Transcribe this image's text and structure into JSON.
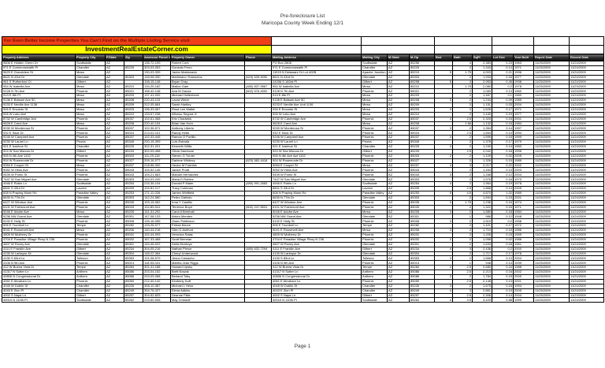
{
  "page": {
    "title_line1": "Pre-foreclosure List",
    "title_line2": "Maricopa County Week Ending 12/1",
    "footer": "Page 1"
  },
  "banner": {
    "line1": "For Even Better Income Properties You Can't Find on the Multiple Listing Service visit",
    "line2": "InvestmentRealEstateCorner.com",
    "bg1": "#f04019",
    "fg1": "#7d1000",
    "bg2": "#ffff00",
    "fg2": "#000000"
  },
  "table": {
    "columns": [
      "Property Address",
      "Property City",
      "P.State",
      "Zip",
      "Assessor Parcel #",
      "Property Owner",
      "Phone",
      "Mailing Address",
      "Mailing City",
      "M.State",
      "M.Zip",
      "Bed",
      "Bath",
      "SqFt",
      "Lot Size",
      "Year Built",
      "Report Date",
      "Record Date"
    ],
    "rows": [
      [
        "9606 E Hidden Green Dr",
        "Scottsdale",
        "AZ",
        "",
        "136-72-109",
        "Robert Cork",
        "",
        "PO Box 2808",
        "Scottsdale",
        "AZ",
        "85256",
        "",
        "4",
        "2,383",
        "0.23",
        "1963",
        "11/25/2009",
        "11/24/2009"
      ],
      [
        "971 E Commonwealth Pl",
        "Chandler",
        "AZ",
        "85225",
        "303-03-053",
        "Gonzalo Ferro",
        "",
        "971 E Commonwealth Pl",
        "Chandler",
        "AZ",
        "85225",
        "",
        "2",
        "1,343",
        "0.14",
        "1971",
        "11/25/2009",
        "11/24/2009"
      ],
      [
        "9629 E Grandview St",
        "Mesa",
        "AZ",
        "",
        "130-03-339",
        "Jadon Maldonado",
        "",
        "11015 N Delaware Dr Lot 402B",
        "Apache Junction",
        "AZ",
        "85219",
        "5",
        "1.75",
        "4,003",
        "0.21",
        "1996",
        "11/25/2009",
        "11/24/2009"
      ],
      [
        "8621 N 43rd Dr",
        "Glendale",
        "AZ",
        "85303",
        "148-08-330",
        "Martiniano Ybanuelos",
        "(623) 535-9090",
        "8621 N 43rd Dr",
        "Glendale",
        "AZ",
        "85303",
        "",
        "2",
        "1,933",
        "0.16",
        "1977",
        "11/25/2009",
        "11/24/2009"
      ],
      [
        "961 S Rutherford Ct",
        "Gilbert",
        "AZ",
        "",
        "108-15-148",
        "Bryan Gray",
        "",
        "24206 S 183rd Pl",
        "Gilbert",
        "AZ",
        "85298",
        "5",
        "3",
        "2,953",
        "0.45",
        "1998",
        "11/25/2009",
        "11/24/2009"
      ],
      [
        "954 W Isabella Ave",
        "Mesa",
        "AZ",
        "85210",
        "134-25-182",
        "Mallon Gale",
        "(480) 837-9567",
        "954 W Isabella Ave",
        "Mesa",
        "AZ",
        "85210",
        "",
        "1.75",
        "2,080",
        "0.2",
        "1978",
        "11/25/2009",
        "11/23/2009"
      ],
      [
        "9128 N 7th Ave",
        "Phoenix",
        "AZ",
        "85021",
        "158-42-148",
        "Ana M Garcia",
        "(602) 576-4092",
        "9128 N 7th Ave",
        "Phoenix",
        "AZ",
        "85021",
        "",
        "2",
        "1,083",
        "0.13",
        "1960",
        "11/25/2009",
        "11/24/2009"
      ],
      [
        "913 E 8th Pl",
        "Mesa",
        "AZ",
        "85203",
        "137-41-032",
        "Michael Hollenbeck",
        "",
        "913 E 8th Pl",
        "Mesa",
        "AZ",
        "85203",
        "",
        "2",
        "1,467",
        "0.1",
        "1960",
        "11/25/2009",
        "11/24/2009"
      ],
      [
        "9136 E Balsam Ave 5C",
        "Mesa",
        "AZ",
        "85208",
        "220-43-115",
        "Laura Welch",
        "",
        "9136 E Balsam Ave 5C",
        "Mesa",
        "AZ",
        "85208",
        "3",
        "2",
        "1,244",
        "0.09",
        "1985",
        "11/25/2009",
        "11/24/2009"
      ],
      [
        "9233 E Neville Ave 1136",
        "Mesa",
        "AZ",
        "85209",
        "312-05-664",
        "Sarah Hartley",
        "",
        "9233 E Neville Ave Unit 1136",
        "Mesa",
        "AZ",
        "85209",
        "",
        "2",
        "1,151",
        "0.03",
        "2004",
        "11/25/2009",
        "11/24/2009"
      ],
      [
        "926 E Encanto St",
        "Mesa",
        "AZ",
        "85203",
        "136-33-067",
        "Rosa Lee Walter",
        "",
        "926 E Encanto St",
        "Mesa",
        "AZ",
        "85203",
        "3",
        "2",
        "1,626",
        "0.17",
        "1971",
        "11/25/2009",
        "11/24/2009"
      ],
      [
        "926 W Lobo Ave",
        "Mesa",
        "AZ",
        "85210",
        "133-57-238",
        "Alfonso Segura Jr",
        "",
        "926 W Lobo Ave",
        "Mesa",
        "AZ",
        "85210",
        "",
        "2",
        "1,440",
        "0.19",
        "1977",
        "11/25/2009",
        "11/24/2009"
      ],
      [
        "8732 W Cambridge Ave",
        "Phoenix",
        "AZ",
        "85037",
        "102-61-068",
        "Eric Chadwick",
        "",
        "8732 W Cambridge Ave",
        "Phoenix",
        "AZ",
        "85037",
        "4",
        "2.5",
        "2,325",
        "0.15",
        "2001",
        "11/25/2009",
        "11/24/2009"
      ],
      [
        "9628 E Carol Ave",
        "Mesa",
        "AZ",
        "85208",
        "220-40-104",
        "Brian Van Horn",
        "",
        "9628 E Carol Ave",
        "Mesa",
        "AZ",
        "85208",
        "",
        "1.66",
        "1,132",
        "0.16",
        "1984",
        "11/25/2009",
        "11/24/2009"
      ],
      [
        "9030 W Monterosa St",
        "Phoenix",
        "AZ",
        "85037",
        "102-36-571",
        "Anthony Liberto",
        "",
        "9030 W Monterosa St",
        "Phoenix",
        "AZ",
        "85037",
        "3",
        "2",
        "1,354",
        "0.14",
        "1997",
        "11/25/2009",
        "11/24/2009"
      ],
      [
        "932 E Sack Dr",
        "Phoenix",
        "AZ",
        "85024",
        "213-02-101",
        "Randy Hebb",
        "",
        "932 E Sack Dr",
        "Phoenix",
        "AZ",
        "85024",
        "",
        "2.5",
        "1,654",
        "0.14",
        "1994",
        "11/25/2009",
        "11/24/2009"
      ],
      [
        "9246 W Campbell Ave",
        "Phoenix",
        "AZ",
        "85037",
        "102-33-445",
        "Ramon O Portillo",
        "",
        "9246 W Campbell Ave",
        "Phoenix",
        "AZ",
        "85037",
        "4",
        "2",
        "1,599",
        "0.15",
        "1999",
        "11/25/2009",
        "11/24/2009"
      ],
      [
        "9230 W Laurel Ln",
        "Peoria",
        "AZ",
        "85345",
        "200-15-399",
        "Luis Estrada",
        "",
        "9230 W Laurel Ln",
        "Peoria",
        "AZ",
        "85345",
        "",
        "2",
        "1,378",
        "0.17",
        "1979",
        "11/25/2009",
        "11/24/2009"
      ],
      [
        "921 E Ivanhoe St",
        "Chandler",
        "AZ",
        "85225",
        "302-31-201",
        "Kenneth Willis",
        "",
        "921 E Ivanhoe St",
        "Chandler",
        "AZ",
        "85225",
        "3",
        "2",
        "1,240",
        "0.14",
        "1983",
        "11/25/2009",
        "11/23/2009"
      ],
      [
        "924 W San Marcos Dr",
        "Gilbert",
        "AZ",
        "85233",
        "302-09-458",
        "Olivia Sandoval",
        "",
        "924 W San Marcos Dr",
        "Gilbert",
        "AZ",
        "85233",
        "",
        "2.5",
        "2,042",
        "0.18",
        "1996",
        "11/25/2009",
        "11/24/2009"
      ],
      [
        "905 N 4th Ave 1102",
        "Phoenix",
        "AZ",
        "85003",
        "111-29-118",
        "Steven G Turner",
        "",
        "905 N 4th Ave Apt 1102",
        "Phoenix",
        "AZ",
        "85003",
        "2",
        "2",
        "1,109",
        "0.02",
        "2005",
        "11/25/2009",
        "11/24/2009"
      ],
      [
        "904 W Rosemonte Dr",
        "Phoenix",
        "AZ",
        "85027",
        "209-16-077",
        "Darlene Whitney",
        "(623) 582-4418",
        "904 W Rosemonte Dr",
        "Phoenix",
        "AZ",
        "85027",
        "",
        "2",
        "1,326",
        "0.15",
        "1989",
        "11/25/2009",
        "11/24/2009"
      ],
      [
        "9054 E Cooper St",
        "Mesa",
        "AZ",
        "85207",
        "218-56-332",
        "Hector M Fuentes",
        "",
        "9054 E Cooper St",
        "Mesa",
        "AZ",
        "85207",
        "4",
        "3",
        "2,217",
        "0.22",
        "2002",
        "11/25/2009",
        "11/24/2009"
      ],
      [
        "9052 W Hess Ave",
        "Phoenix",
        "AZ",
        "85043",
        "104-52-146",
        "Janice Pruitt",
        "",
        "9052 W Hess Ave",
        "Phoenix",
        "AZ",
        "85043",
        "",
        "2",
        "1,454",
        "0.13",
        "2003",
        "11/25/2009",
        "11/24/2009"
      ],
      [
        "9439 W Pomo St",
        "Phoenix",
        "AZ",
        "85043",
        "104-21-663",
        "Manuel Hernandez",
        "",
        "9439 W Pomo St",
        "Phoenix",
        "AZ",
        "85043",
        "3",
        "2",
        "1,288",
        "0.12",
        "2004",
        "11/25/2009",
        "11/24/2009"
      ],
      [
        "7447 W San Miguel Ave",
        "Glendale",
        "AZ",
        "85303",
        "144-03-249",
        "Maria D Robles",
        "",
        "7447 W San Miguel Ave",
        "Glendale",
        "AZ",
        "85303",
        "",
        "2",
        "1,576",
        "0.16",
        "1973",
        "11/25/2009",
        "11/24/2009"
      ],
      [
        "4946 E Robin Ln",
        "Scottsdale",
        "AZ",
        "85254",
        "215-36-104",
        "Donald P Maier",
        "(480) 991-2683",
        "4946 E Robin Ln",
        "Scottsdale",
        "AZ",
        "85254",
        "4",
        "2",
        "1,964",
        "0.19",
        "1978",
        "11/25/2009",
        "11/24/2009"
      ],
      [
        "6841 S 43rd Dr",
        "Laveen",
        "AZ",
        "85339",
        "104-81-117",
        "Tracy Coleman",
        "",
        "6841 S 43rd Dr",
        "Laveen",
        "AZ",
        "85339",
        "",
        "2.5",
        "1,868",
        "0.14",
        "2005",
        "11/25/2009",
        "11/24/2009"
      ],
      [
        "608 N Praying Monk Rd",
        "Paradise Valley",
        "AZ",
        "85253",
        "171-11-026",
        "James Whitfield",
        "",
        "608 N Praying Monk Rd",
        "Paradise Valley",
        "AZ",
        "85253",
        "5",
        "4.5",
        "4,870",
        "1.02",
        "1989",
        "11/25/2009",
        "11/24/2009"
      ],
      [
        "6630 N 77th Dr",
        "Glendale",
        "AZ",
        "85303",
        "142-24-580",
        "Pedro Galindo",
        "",
        "6630 N 77th Dr",
        "Glendale",
        "AZ",
        "85303",
        "",
        "2",
        "1,694",
        "0.15",
        "2001",
        "11/25/2009",
        "11/24/2009"
      ],
      [
        "6427 W Windsor Ave",
        "Phoenix",
        "AZ",
        "85035",
        "103-15-062",
        "Irma Y Castillo",
        "",
        "6427 W Windsor Ave",
        "Phoenix",
        "AZ",
        "85035",
        "3",
        "1.75",
        "1,236",
        "0.16",
        "1974",
        "11/25/2009",
        "11/24/2009"
      ],
      [
        "6101 W Fairmount Ave",
        "Phoenix",
        "AZ",
        "85033",
        "102-89-041",
        "Terrence Boyd",
        "(602) 247-5531",
        "6101 W Fairmount Ave",
        "Phoenix",
        "AZ",
        "85033",
        "",
        "2",
        "1,322",
        "0.15",
        "1971",
        "11/25/2009",
        "11/23/2009"
      ],
      [
        "5046 E Adobe Ave",
        "Mesa",
        "AZ",
        "85205",
        "141-31-292",
        "Carol A Brimhall",
        "",
        "5046 E Adobe Ave",
        "Mesa",
        "AZ",
        "85205",
        "3",
        "2",
        "1,580",
        "0.18",
        "1984",
        "11/25/2009",
        "11/24/2009"
      ],
      [
        "5236 NW Grand Ave",
        "Glendale",
        "AZ",
        "85301",
        "147-08-133",
        "Arturo Mendez",
        "",
        "5236 NW Grand Ave",
        "Glendale",
        "AZ",
        "85301",
        "",
        "1",
        "986",
        "0.12",
        "1948",
        "11/25/2009",
        "11/24/2009"
      ],
      [
        "5132 E Holly St",
        "Phoenix",
        "AZ",
        "85008",
        "126-16-055",
        "Gwen Patterson",
        "",
        "5132 E Holly St",
        "Phoenix",
        "AZ",
        "85008",
        "3",
        "2",
        "1,519",
        "0.2",
        "1958",
        "11/25/2009",
        "11/24/2009"
      ],
      [
        "506 E Trumbull Ln",
        "Tempe",
        "AZ",
        "85282",
        "133-26-077",
        "Felicia Moore",
        "",
        "506 E Trumbull Ln",
        "Tempe",
        "AZ",
        "85282",
        "",
        "2",
        "1,421",
        "0.17",
        "1972",
        "11/25/2009",
        "11/24/2009"
      ],
      [
        "5041 E Roosevelt Ave",
        "Mesa",
        "AZ",
        "85206",
        "140-44-218",
        "Glen D Ashford",
        "",
        "5041 E Roosevelt Ave",
        "Mesa",
        "AZ",
        "85206",
        "3",
        "2",
        "1,710",
        "0.19",
        "1986",
        "11/25/2009",
        "11/24/2009"
      ],
      [
        "4805 W Mulberry Dr",
        "Phoenix",
        "AZ",
        "85031",
        "102-44-093",
        "Veronica Salas",
        "",
        "4805 W Mulberry Dr",
        "Phoenix",
        "AZ",
        "85031",
        "",
        "2",
        "1,205",
        "0.15",
        "1959",
        "11/25/2009",
        "11/24/2009"
      ],
      [
        "4704 E Paradise Village Pkwy N 236",
        "Phoenix",
        "AZ",
        "85032",
        "167-33-468",
        "Scott Brennan",
        "",
        "4704 E Paradise Village Pkwy N 236",
        "Phoenix",
        "AZ",
        "85032",
        "2",
        "2",
        "1,058",
        "0.02",
        "1986",
        "11/25/2009",
        "11/24/2009"
      ],
      [
        "4607 W Rovey Ave",
        "Glendale",
        "AZ",
        "85301",
        "144-46-022",
        "Delia Montoya",
        "",
        "4607 W Rovey Ave",
        "Glendale",
        "AZ",
        "85301",
        "",
        "2",
        "1,633",
        "0.18",
        "1961",
        "11/25/2009",
        "11/24/2009"
      ],
      [
        "4111 E Franklin Ave",
        "Gilbert",
        "AZ",
        "85234",
        "304-05-216",
        "Nathan Pierce",
        "(480) 632-7294",
        "4111 E Franklin Ave",
        "Gilbert",
        "AZ",
        "85234",
        "4",
        "3",
        "2,436",
        "0.2",
        "2000",
        "11/25/2009",
        "11/24/2009"
      ],
      [
        "4130 W Larkspur Dr",
        "Glendale",
        "AZ",
        "85304",
        "148-22-364",
        "Cheryl Underwood",
        "",
        "4130 W Larkspur Dr",
        "Glendale",
        "AZ",
        "85304",
        "",
        "2",
        "1,717",
        "0.17",
        "1978",
        "11/25/2009",
        "11/24/2009"
      ],
      [
        "4130 S 83rd Ln",
        "Tolleson",
        "AZ",
        "85353",
        "101-08-579",
        "Jesus Camacho",
        "",
        "4130 S 83rd Ln",
        "Tolleson",
        "AZ",
        "85353",
        "3",
        "2",
        "1,568",
        "0.13",
        "2004",
        "11/25/2009",
        "11/24/2009"
      ],
      [
        "4106 N 9th Ave",
        "Phoenix",
        "AZ",
        "85013",
        "118-53-041",
        "Martha Jean Riggs",
        "",
        "4106 N 9th Ave",
        "Phoenix",
        "AZ",
        "85013",
        "",
        "1",
        "948",
        "0.14",
        "1939",
        "11/25/2009",
        "11/24/2009"
      ],
      [
        "412 W Buena Vista Dr",
        "Tempe",
        "AZ",
        "85284",
        "301-41-188",
        "Howard Lipsky",
        "",
        "412 W Buena Vista Dr",
        "Tempe",
        "AZ",
        "85284",
        "4",
        "2.5",
        "2,680",
        "0.24",
        "1988",
        "11/25/2009",
        "11/24/2009"
      ],
      [
        "41317 N Sutter Ln",
        "Anthem",
        "AZ",
        "85086",
        "203-04-152",
        "Brett Nowak",
        "",
        "41317 N Sutter Ln",
        "Anthem",
        "AZ",
        "85086",
        "",
        "2.5",
        "2,213",
        "0.16",
        "2002",
        "11/25/2009",
        "11/24/2009"
      ],
      [
        "40806 N Congressional Dr",
        "Anthem",
        "AZ",
        "85086",
        "203-09-268",
        "Berland Toby",
        "",
        "40806 N Congressional Dr",
        "Anthem",
        "AZ",
        "85086",
        "3",
        "2",
        "1,784",
        "0.15",
        "2000",
        "11/25/2009",
        "11/24/2009"
      ],
      [
        "4061 E Abraham Ln",
        "Phoenix",
        "AZ",
        "85050",
        "212-40-142",
        "Kimberly Duff",
        "",
        "4061 E Abraham Ln",
        "Phoenix",
        "AZ",
        "85050",
        "",
        "2.5",
        "2,148",
        "0.13",
        "2001",
        "11/25/2009",
        "11/24/2009"
      ],
      [
        "4045 W Dublin St",
        "Chandler",
        "AZ",
        "85226",
        "308-10-387",
        "Michael L Hess",
        "",
        "4045 W Dublin St",
        "Chandler",
        "AZ",
        "85226",
        "3",
        "2",
        "1,675",
        "0.16",
        "1994",
        "11/25/2009",
        "11/24/2009"
      ],
      [
        "4043 E Zion Pl",
        "Chandler",
        "AZ",
        "85249",
        "304-76-427",
        "Elena Adkins",
        "",
        "4043 E Zion Pl",
        "Chandler",
        "AZ",
        "85249",
        "4",
        "3",
        "2,861",
        "0.19",
        "2005",
        "11/25/2009",
        "11/24/2009"
      ],
      [
        "4002 S Napa Ln",
        "Gilbert",
        "AZ",
        "85297",
        "304-52-833",
        "Deanne Fikle",
        "",
        "4002 S Napa Ln",
        "Gilbert",
        "AZ",
        "85297",
        "",
        "2.5",
        "2,306",
        "0.14",
        "2004",
        "11/25/2009",
        "11/23/2009"
      ],
      [
        "40010 N 110th Pl",
        "Scottsdale",
        "AZ",
        "85262",
        "219-60-908",
        "May Christoff",
        "",
        "40010 N 110th Pl",
        "Scottsdale",
        "AZ",
        "85262",
        "4",
        "3.5",
        "3,420",
        "0.88",
        "1999",
        "11/25/2009",
        "11/24/2009"
      ]
    ]
  }
}
